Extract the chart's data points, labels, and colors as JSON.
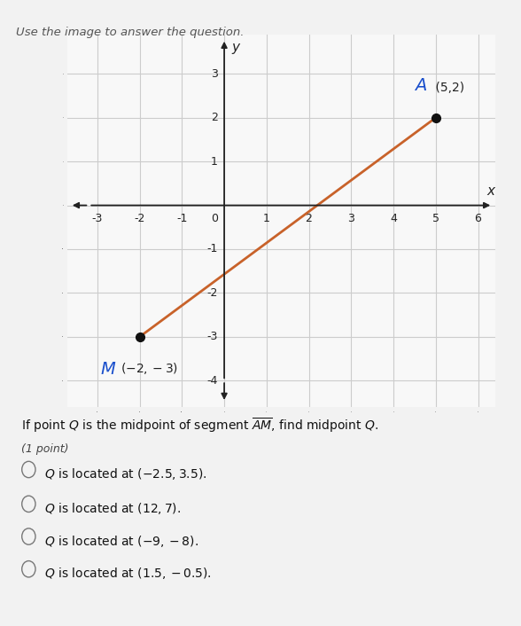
{
  "title": "Use the image to answer the question.",
  "point_A": [
    5,
    2
  ],
  "point_M": [
    -2,
    -3
  ],
  "line_color": "#c8622a",
  "point_color": "#111111",
  "xlim": [
    -3.7,
    6.4
  ],
  "ylim": [
    -4.6,
    3.9
  ],
  "xticks": [
    -3,
    -2,
    -1,
    0,
    1,
    2,
    3,
    4,
    5,
    6
  ],
  "yticks": [
    -4,
    -3,
    -2,
    -1,
    0,
    1,
    2,
    3
  ],
  "xlabel": "x",
  "ylabel": "y",
  "question_text": "If point $Q$ is the midpoint of segment $\\overline{AM}$, find midpoint $Q$.",
  "point_label": "(1 point)",
  "choices": [
    "$Q$ is located at $(-2.5, 3.5)$.",
    "$Q$ is located at $(12, 7)$.",
    "$Q$ is located at $(-9, -8)$.",
    "$Q$ is located at $(1.5, -0.5)$."
  ],
  "bg_color": "#f2f2f2",
  "header_bg": "#e8e8e8",
  "plot_bg_color": "#f8f8f8",
  "grid_color": "#cccccc",
  "axis_color": "#222222",
  "A_label_color": "#1a4fcc",
  "M_label_color": "#1a4fcc",
  "title_color": "#555555",
  "fig_width": 5.88,
  "fig_height": 7.06,
  "dpi": 100
}
